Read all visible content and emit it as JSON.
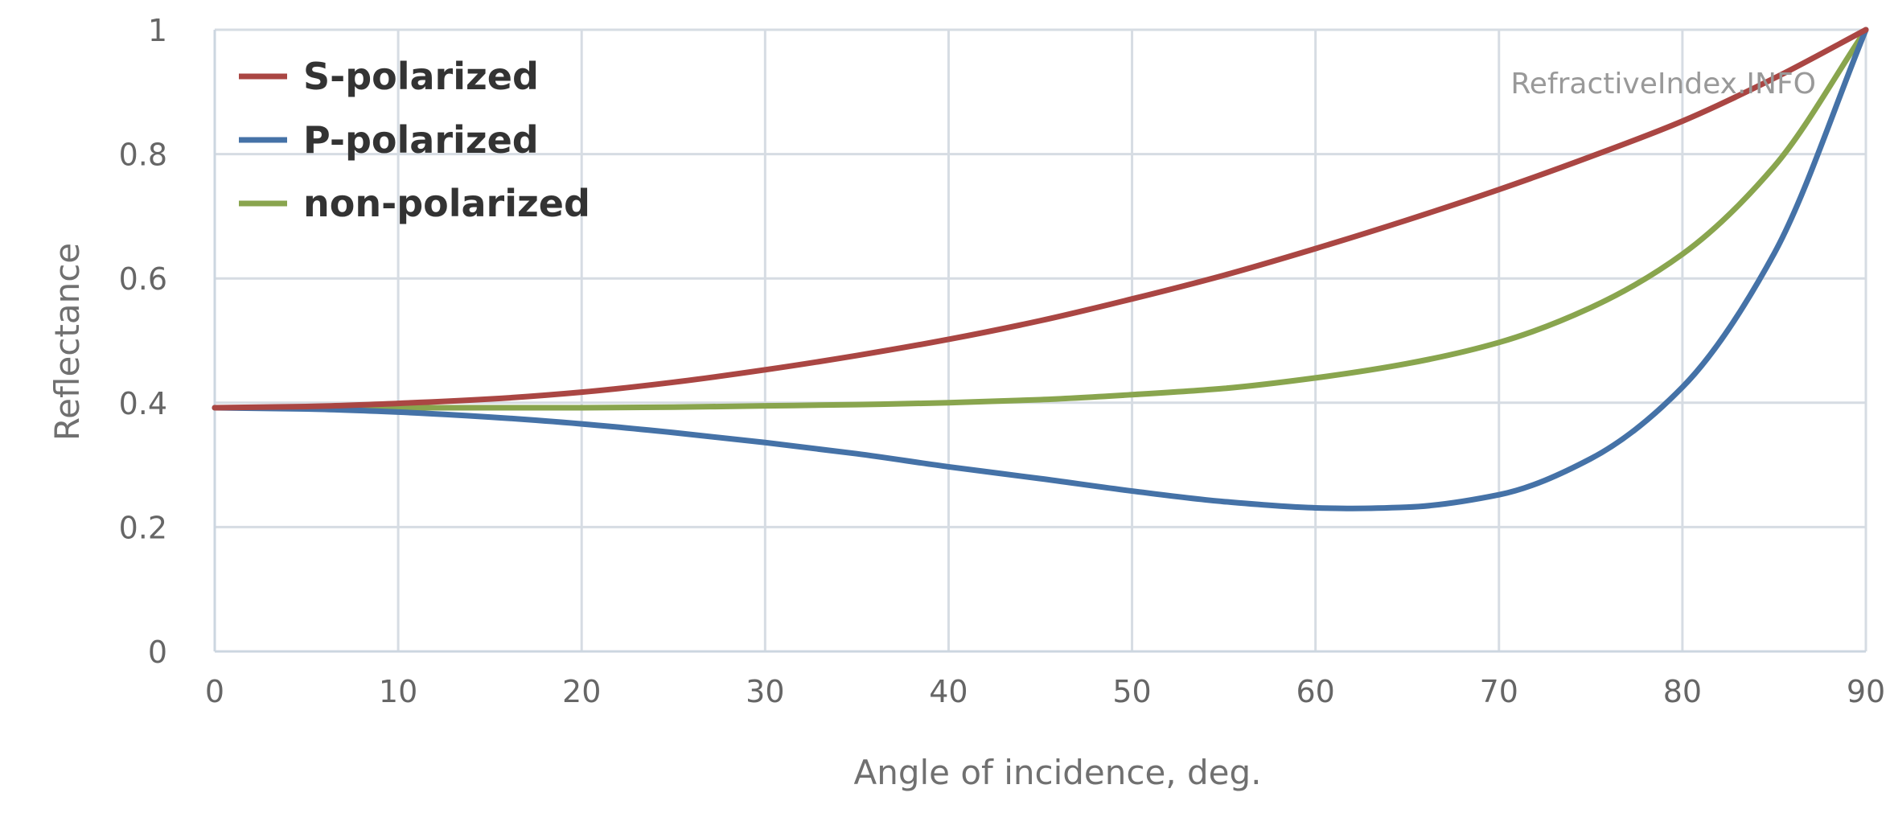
{
  "chart_data": {
    "type": "line",
    "title": "",
    "xlabel": "Angle of incidence, deg.",
    "ylabel": "Reflectance",
    "xlim": [
      0,
      90
    ],
    "ylim": [
      0,
      1
    ],
    "x_ticks": [
      0,
      10,
      20,
      30,
      40,
      50,
      60,
      70,
      80,
      90
    ],
    "y_ticks": [
      0,
      0.2,
      0.4,
      0.6,
      0.8,
      1
    ],
    "y_tick_labels": [
      "0",
      "0.2",
      "0.4",
      "0.6",
      "0.8",
      "1"
    ],
    "grid": true,
    "legend_position": "top-left",
    "credit": "RefractiveIndex.INFO",
    "series": [
      {
        "name": "S-polarized",
        "color": "#aa4643",
        "x": [
          0,
          5,
          10,
          15,
          20,
          25,
          30,
          35,
          40,
          45,
          50,
          55,
          60,
          65,
          70,
          75,
          80,
          85,
          90
        ],
        "values": [
          0.392,
          0.394,
          0.399,
          0.406,
          0.417,
          0.433,
          0.453,
          0.476,
          0.502,
          0.532,
          0.567,
          0.605,
          0.648,
          0.694,
          0.743,
          0.796,
          0.853,
          0.922,
          1.0
        ]
      },
      {
        "name": "P-polarized",
        "color": "#4572a7",
        "x": [
          0,
          5,
          10,
          15,
          20,
          25,
          30,
          35,
          40,
          45,
          50,
          55,
          60,
          62,
          65,
          70,
          75,
          80,
          85,
          90
        ],
        "values": [
          0.392,
          0.39,
          0.385,
          0.377,
          0.366,
          0.352,
          0.336,
          0.318,
          0.297,
          0.278,
          0.258,
          0.241,
          0.231,
          0.23,
          0.232,
          0.252,
          0.31,
          0.425,
          0.64,
          1.0
        ]
      },
      {
        "name": "non-polarized",
        "color": "#89a54e",
        "x": [
          0,
          5,
          10,
          15,
          20,
          25,
          30,
          35,
          40,
          45,
          50,
          55,
          60,
          65,
          70,
          75,
          80,
          85,
          90
        ],
        "values": [
          0.392,
          0.392,
          0.392,
          0.392,
          0.392,
          0.393,
          0.395,
          0.397,
          0.4,
          0.405,
          0.413,
          0.423,
          0.44,
          0.463,
          0.497,
          0.553,
          0.639,
          0.78,
          1.0
        ]
      }
    ]
  }
}
